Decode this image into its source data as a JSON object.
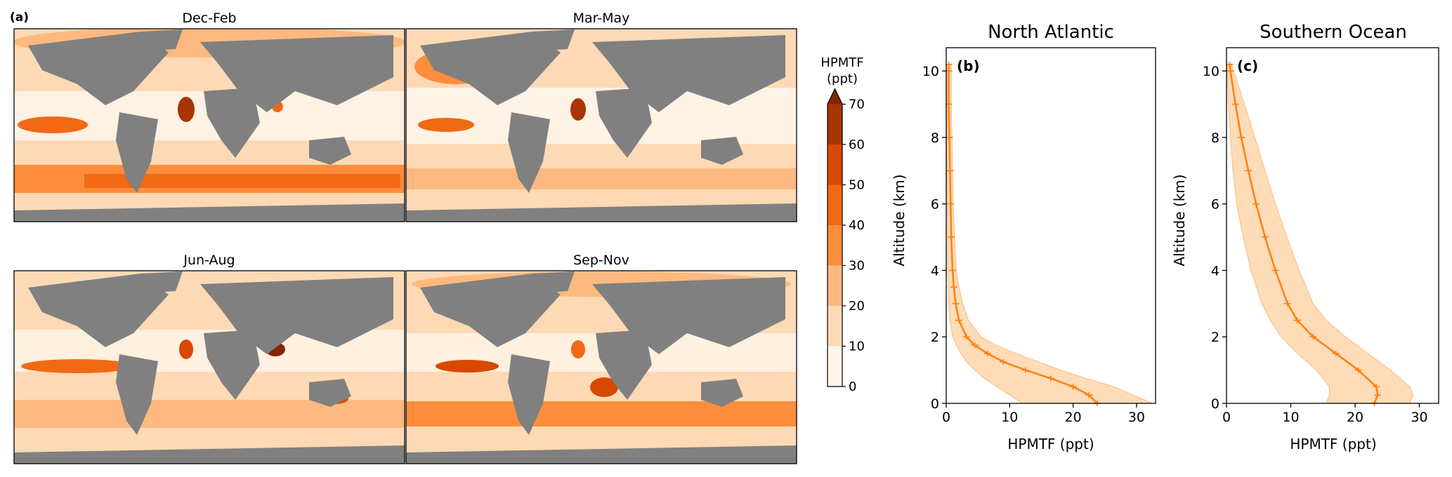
{
  "panel_a": {
    "tag": "(a)",
    "maps": [
      {
        "title": "Dec-Feb"
      },
      {
        "title": "Mar-May"
      },
      {
        "title": "Jun-Aug"
      },
      {
        "title": "Sep-Nov"
      }
    ],
    "colorbar": {
      "label_line1": "HPMTF",
      "label_line2": "(ppt)",
      "levels": [
        0,
        10,
        20,
        30,
        40,
        50,
        60,
        70
      ],
      "tick_labels": [
        "0",
        "10",
        "20",
        "30",
        "40",
        "50",
        "60",
        "70"
      ],
      "colors": [
        "#fff5eb",
        "#fdd9b5",
        "#fdb97f",
        "#fd8d3c",
        "#f16913",
        "#d84801",
        "#a63603",
        "#7f2704"
      ],
      "extend": "max"
    },
    "land_color": "#808080"
  },
  "chart_data": [
    {
      "type": "line",
      "panel": "(b)",
      "title": "North Atlantic",
      "xlabel": "HPMTF (ppt)",
      "ylabel": "Altitude (km)",
      "xlim": [
        0,
        33
      ],
      "ylim": [
        0,
        10.7
      ],
      "xticks": [
        0,
        10,
        20,
        30
      ],
      "yticks": [
        0,
        2,
        4,
        6,
        8,
        10
      ],
      "line_color": "#ff7f0e",
      "band_color": "#fdd09f",
      "series": [
        {
          "y": [
            0,
            0.25,
            0.5,
            0.75,
            1.0,
            1.25,
            1.5,
            1.75,
            2.0,
            2.5,
            3.0,
            3.5,
            4.0,
            5.0,
            6.0,
            7.0,
            8.0,
            9.0,
            10.0,
            10.2
          ],
          "mean": [
            23.8,
            22.5,
            20.0,
            16.5,
            12.5,
            9.0,
            6.5,
            4.5,
            3.2,
            2.0,
            1.5,
            1.2,
            1.0,
            0.8,
            0.7,
            0.6,
            0.5,
            0.4,
            0.4,
            0.4
          ],
          "lower": [
            12.0,
            10.0,
            8.0,
            6.0,
            4.5,
            3.2,
            2.3,
            1.6,
            1.0,
            0.6,
            0.4,
            0.3,
            0.2,
            0.2,
            0.15,
            0.1,
            0.1,
            0.1,
            0.1,
            0.1
          ],
          "upper": [
            32.5,
            29.5,
            26.5,
            22.0,
            18.0,
            14.5,
            11.0,
            7.8,
            5.5,
            3.5,
            2.6,
            2.0,
            1.6,
            1.3,
            1.1,
            1.0,
            0.9,
            0.8,
            0.8,
            0.8
          ]
        }
      ]
    },
    {
      "type": "line",
      "panel": "(c)",
      "title": "Southern Ocean",
      "xlabel": "HPMTF (ppt)",
      "ylabel": "Altitude (km)",
      "xlim": [
        0,
        33
      ],
      "ylim": [
        0,
        10.7
      ],
      "xticks": [
        0,
        10,
        20,
        30
      ],
      "yticks": [
        0,
        2,
        4,
        6,
        8,
        10
      ],
      "line_color": "#ff7f0e",
      "band_color": "#fdd09f",
      "series": [
        {
          "y": [
            0,
            0.25,
            0.5,
            1.0,
            1.5,
            2.0,
            2.5,
            3.0,
            4.0,
            5.0,
            6.0,
            7.0,
            8.0,
            9.0,
            10.0,
            10.2
          ],
          "mean": [
            23.0,
            23.5,
            23.3,
            20.5,
            17.0,
            13.5,
            11.0,
            9.5,
            7.6,
            6.0,
            4.6,
            3.4,
            2.3,
            1.4,
            0.6,
            0.5
          ],
          "lower": [
            15.5,
            16.0,
            16.0,
            14.0,
            11.0,
            8.5,
            6.8,
            5.5,
            3.8,
            2.6,
            1.6,
            1.0,
            0.6,
            0.3,
            0.1,
            0.1
          ],
          "upper": [
            28.5,
            29.0,
            28.5,
            25.5,
            22.0,
            18.5,
            15.5,
            13.5,
            11.3,
            9.4,
            7.6,
            6.0,
            4.4,
            2.8,
            1.1,
            0.8
          ]
        }
      ]
    }
  ]
}
